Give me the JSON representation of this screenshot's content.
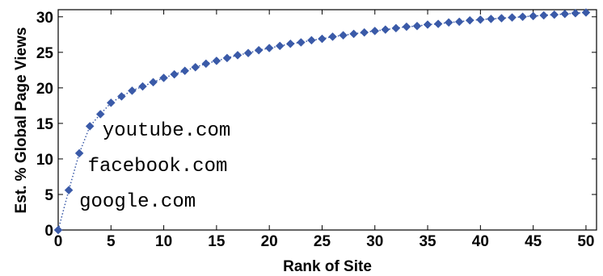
{
  "chart_data": {
    "type": "line",
    "title": "",
    "xlabel": "Rank of Site",
    "ylabel": "Est. % Global Page Views",
    "xlim": [
      0,
      51
    ],
    "ylim": [
      0,
      31
    ],
    "xticks": [
      0,
      5,
      10,
      15,
      20,
      25,
      30,
      35,
      40,
      45,
      50
    ],
    "yticks": [
      0,
      5,
      10,
      15,
      20,
      25,
      30
    ],
    "grid": false,
    "legend": "none",
    "series": [
      {
        "color": "#3a5aa8",
        "line_style": "dotted",
        "marker": "diamond",
        "x": [
          0,
          1,
          2,
          3,
          4,
          5,
          6,
          7,
          8,
          9,
          10,
          11,
          12,
          13,
          14,
          15,
          16,
          17,
          18,
          19,
          20,
          21,
          22,
          23,
          24,
          25,
          26,
          27,
          28,
          29,
          30,
          31,
          32,
          33,
          34,
          35,
          36,
          37,
          38,
          39,
          40,
          41,
          42,
          43,
          44,
          45,
          46,
          47,
          48,
          49,
          50
        ],
        "y": [
          0,
          5.6,
          10.8,
          14.6,
          16.3,
          17.9,
          18.8,
          19.6,
          20.2,
          20.8,
          21.4,
          21.9,
          22.4,
          22.9,
          23.4,
          23.8,
          24.2,
          24.6,
          24.9,
          25.3,
          25.6,
          25.9,
          26.2,
          26.4,
          26.7,
          26.9,
          27.2,
          27.4,
          27.6,
          27.8,
          28.0,
          28.2,
          28.4,
          28.6,
          28.7,
          28.9,
          29.0,
          29.2,
          29.3,
          29.5,
          29.6,
          29.7,
          29.8,
          29.9,
          30.0,
          30.1,
          30.2,
          30.3,
          30.4,
          30.5,
          30.6
        ]
      }
    ],
    "annotations": [
      {
        "text": "youtube.com",
        "x": 4.2,
        "y": 13.3
      },
      {
        "text": "facebook.com",
        "x": 2.8,
        "y": 8.3
      },
      {
        "text": "google.com",
        "x": 2.0,
        "y": 3.3
      }
    ]
  }
}
